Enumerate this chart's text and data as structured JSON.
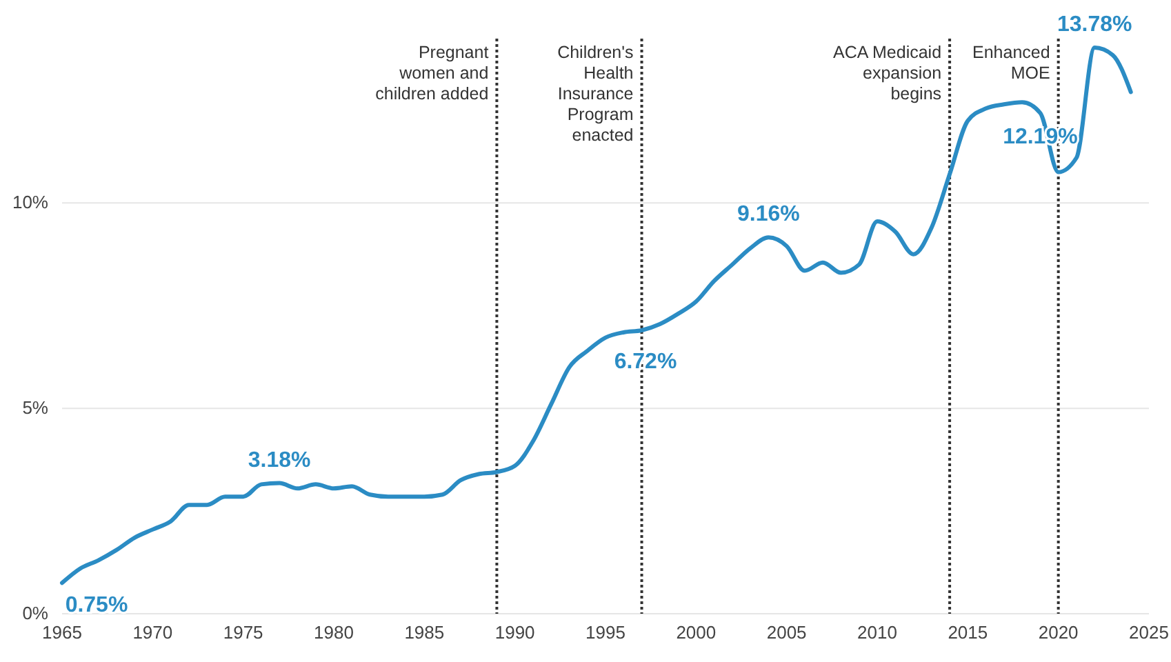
{
  "chart_data": {
    "type": "line",
    "x": [
      1965,
      1966,
      1967,
      1968,
      1969,
      1970,
      1971,
      1972,
      1973,
      1974,
      1975,
      1976,
      1977,
      1978,
      1979,
      1980,
      1981,
      1982,
      1983,
      1984,
      1985,
      1986,
      1987,
      1988,
      1989,
      1990,
      1991,
      1992,
      1993,
      1994,
      1995,
      1996,
      1997,
      1998,
      1999,
      2000,
      2001,
      2002,
      2003,
      2004,
      2005,
      2006,
      2007,
      2008,
      2009,
      2010,
      2011,
      2012,
      2013,
      2014,
      2015,
      2016,
      2017,
      2018,
      2019,
      2020,
      2021,
      2022,
      2023,
      2024
    ],
    "series": [
      {
        "color": "#2b8cc4",
        "values": [
          0.75,
          1.1,
          1.3,
          1.55,
          1.85,
          2.05,
          2.25,
          2.65,
          2.65,
          2.85,
          2.85,
          3.15,
          3.18,
          3.05,
          3.15,
          3.05,
          3.1,
          2.9,
          2.85,
          2.85,
          2.85,
          2.9,
          3.25,
          3.4,
          3.45,
          3.6,
          4.2,
          5.1,
          6.0,
          6.4,
          6.72,
          6.85,
          6.9,
          7.05,
          7.3,
          7.6,
          8.1,
          8.5,
          8.9,
          9.16,
          8.95,
          8.35,
          8.55,
          8.3,
          8.5,
          9.55,
          9.3,
          8.75,
          9.4,
          10.7,
          12.0,
          12.3,
          12.4,
          12.45,
          12.19,
          10.75,
          11.1,
          13.78,
          13.6,
          12.7
        ],
        "value_labels": [
          "0.75%",
          null,
          null,
          null,
          null,
          null,
          null,
          null,
          null,
          null,
          null,
          null,
          "3.18%",
          null,
          null,
          null,
          null,
          null,
          null,
          null,
          null,
          null,
          null,
          null,
          null,
          null,
          null,
          null,
          null,
          null,
          "6.72%",
          null,
          null,
          null,
          null,
          null,
          null,
          null,
          null,
          "9.16%",
          null,
          null,
          null,
          null,
          null,
          null,
          null,
          null,
          null,
          null,
          null,
          null,
          null,
          null,
          "12.19%",
          null,
          null,
          "13.78%",
          null,
          null
        ]
      }
    ],
    "xlim": [
      1965,
      2025
    ],
    "xticks": [
      1965,
      1970,
      1975,
      1980,
      1985,
      1990,
      1995,
      2000,
      2005,
      2010,
      2015,
      2020,
      2025
    ],
    "ylim": [
      0,
      14
    ],
    "yticks": [
      {
        "value": 0,
        "label": "0%"
      },
      {
        "value": 5,
        "label": "5%"
      },
      {
        "value": 10,
        "label": "10%"
      }
    ],
    "grid": "y",
    "line_style": "solid",
    "marker": "none",
    "ref_lines": [
      {
        "axis": "x",
        "value": 1989,
        "label": "Pregnant\nwomen and\nchildren added",
        "color": "#333333",
        "line_style": "dotted"
      },
      {
        "axis": "x",
        "value": 1997,
        "label": "Children's\nHealth\nInsurance\nProgram\nenacted",
        "color": "#333333",
        "line_style": "dotted"
      },
      {
        "axis": "x",
        "value": 2014,
        "label": "ACA Medicaid\nexpansion\nbegins",
        "color": "#333333",
        "line_style": "dotted"
      },
      {
        "axis": "x",
        "value": 2020,
        "label": "Enhanced\nMOE",
        "color": "#333333",
        "line_style": "dotted"
      }
    ]
  }
}
